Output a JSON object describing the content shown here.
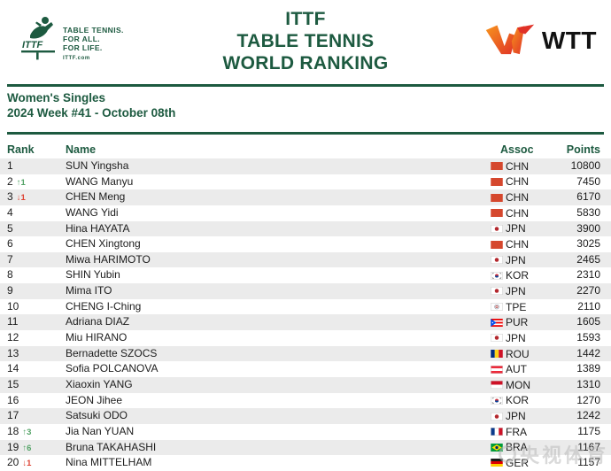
{
  "header": {
    "ittf_logo": {
      "tagline_lines": [
        "TABLE TENNIS.",
        "FOR ALL.",
        "FOR LIFE."
      ],
      "site": "ITTF.com",
      "mark_text": "ITTF"
    },
    "title_lines": [
      "ITTF",
      "TABLE TENNIS",
      "WORLD RANKING"
    ],
    "wtt_logo_text": "WTT"
  },
  "section": {
    "category": "Women's Singles",
    "week": "2024 Week #41 - October 08th"
  },
  "table": {
    "columns": {
      "rank": "Rank",
      "name": "Name",
      "assoc": "Assoc",
      "points": "Points"
    },
    "rows": [
      {
        "rank": "1",
        "change": "",
        "dir": "",
        "name": "SUN Yingsha",
        "assoc": "CHN",
        "points": "10800"
      },
      {
        "rank": "2",
        "change": "1",
        "dir": "up",
        "name": "WANG Manyu",
        "assoc": "CHN",
        "points": "7450"
      },
      {
        "rank": "3",
        "change": "1",
        "dir": "down",
        "name": "CHEN Meng",
        "assoc": "CHN",
        "points": "6170"
      },
      {
        "rank": "4",
        "change": "",
        "dir": "",
        "name": "WANG Yidi",
        "assoc": "CHN",
        "points": "5830"
      },
      {
        "rank": "5",
        "change": "",
        "dir": "",
        "name": "Hina HAYATA",
        "assoc": "JPN",
        "points": "3900"
      },
      {
        "rank": "6",
        "change": "",
        "dir": "",
        "name": "CHEN Xingtong",
        "assoc": "CHN",
        "points": "3025"
      },
      {
        "rank": "7",
        "change": "",
        "dir": "",
        "name": "Miwa HARIMOTO",
        "assoc": "JPN",
        "points": "2465"
      },
      {
        "rank": "8",
        "change": "",
        "dir": "",
        "name": "SHIN Yubin",
        "assoc": "KOR",
        "points": "2310"
      },
      {
        "rank": "9",
        "change": "",
        "dir": "",
        "name": "Mima ITO",
        "assoc": "JPN",
        "points": "2270"
      },
      {
        "rank": "10",
        "change": "",
        "dir": "",
        "name": "CHENG I-Ching",
        "assoc": "TPE",
        "points": "2110"
      },
      {
        "rank": "11",
        "change": "",
        "dir": "",
        "name": "Adriana DIAZ",
        "assoc": "PUR",
        "points": "1605"
      },
      {
        "rank": "12",
        "change": "",
        "dir": "",
        "name": "Miu HIRANO",
        "assoc": "JPN",
        "points": "1593"
      },
      {
        "rank": "13",
        "change": "",
        "dir": "",
        "name": "Bernadette SZOCS",
        "assoc": "ROU",
        "points": "1442"
      },
      {
        "rank": "14",
        "change": "",
        "dir": "",
        "name": "Sofia POLCANOVA",
        "assoc": "AUT",
        "points": "1389"
      },
      {
        "rank": "15",
        "change": "",
        "dir": "",
        "name": "Xiaoxin YANG",
        "assoc": "MON",
        "points": "1310"
      },
      {
        "rank": "16",
        "change": "",
        "dir": "",
        "name": "JEON Jihee",
        "assoc": "KOR",
        "points": "1270"
      },
      {
        "rank": "17",
        "change": "",
        "dir": "",
        "name": "Satsuki ODO",
        "assoc": "JPN",
        "points": "1242"
      },
      {
        "rank": "18",
        "change": "3",
        "dir": "up",
        "name": "Jia Nan YUAN",
        "assoc": "FRA",
        "points": "1175"
      },
      {
        "rank": "19",
        "change": "6",
        "dir": "up",
        "name": "Bruna TAKAHASHI",
        "assoc": "BRA",
        "points": "1167"
      },
      {
        "rank": "20",
        "change": "1",
        "dir": "down",
        "name": "Nina MITTELHAM",
        "assoc": "GER",
        "points": "1157"
      }
    ]
  },
  "watermark": {
    "text": "央视体育"
  },
  "colors": {
    "brand_green": "#1d5a40",
    "row_stripe": "#ebebeb",
    "up_green": "#55a468",
    "down_red": "#de4434",
    "wtt_orange": "#f7941d",
    "wtt_red": "#e03127"
  }
}
